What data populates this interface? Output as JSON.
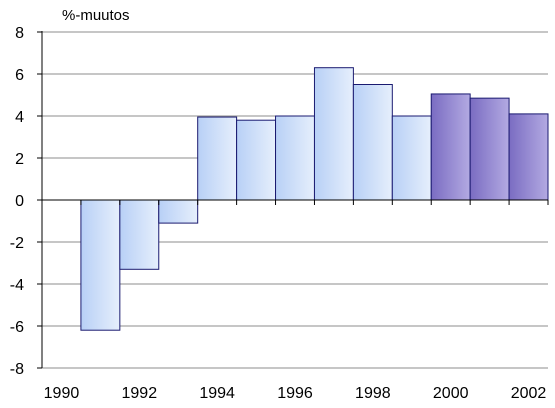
{
  "chart_data": {
    "type": "bar",
    "categories": [
      "1990",
      "1991",
      "1992",
      "1993",
      "1994",
      "1995",
      "1996",
      "1997",
      "1998",
      "1999",
      "2000",
      "2001",
      "2002"
    ],
    "values": [
      0,
      -6.2,
      -3.3,
      -1.1,
      3.95,
      3.8,
      4.0,
      6.3,
      5.5,
      4.0,
      5.05,
      4.85,
      4.1
    ],
    "ylabel": "%-muutos",
    "xlabel": "",
    "title": "",
    "ylim": [
      -8,
      8
    ],
    "yticks": [
      -8,
      -6,
      -4,
      -2,
      0,
      2,
      4,
      6,
      8
    ],
    "xtick_labels": [
      "1990",
      "",
      "1992",
      "",
      "1994",
      "",
      "1996",
      "",
      "1998",
      "",
      "2000",
      "",
      "2002"
    ],
    "grid": true,
    "legend": "none",
    "colors": {
      "light_bar_start": "#b8d0f6",
      "light_bar_end": "#e6effc",
      "dark_bar_start": "#7a6cc2",
      "dark_bar_end": "#b3aae2",
      "bar_edge": "#1a1a70",
      "grid": "#8c8c8c",
      "axis": "#000000"
    },
    "highlight_from_index": 10
  }
}
